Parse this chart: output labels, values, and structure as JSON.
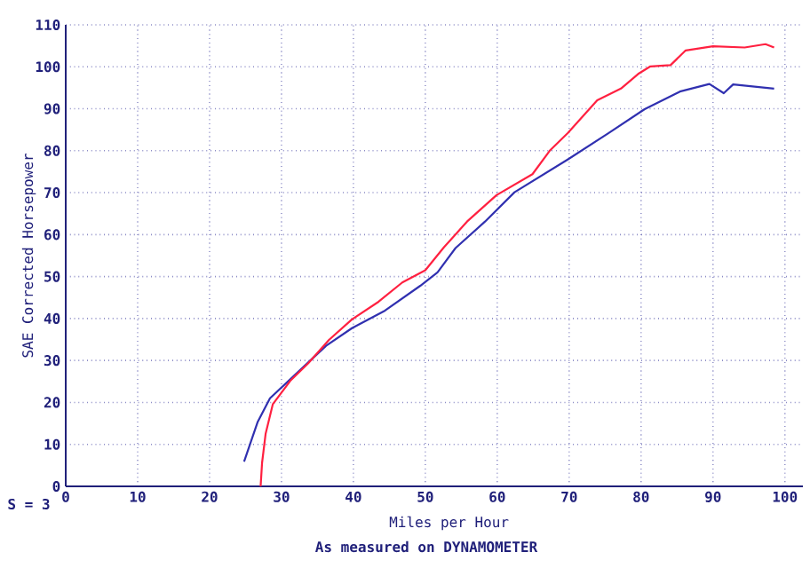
{
  "chart_data": {
    "type": "line",
    "xlabel": "Miles per Hour",
    "ylabel": "SAE Corrected Horsepower",
    "annotations": [
      "S = 3",
      "As measured on DYNAMOMETER"
    ],
    "xlim": [
      0,
      102.5
    ],
    "ylim": [
      0,
      110
    ],
    "xticks": [
      0,
      10,
      20,
      30,
      40,
      50,
      60,
      70,
      80,
      90,
      100
    ],
    "yticks": [
      0,
      10,
      20,
      30,
      40,
      50,
      60,
      70,
      80,
      90,
      100,
      110
    ],
    "grid": true,
    "marker": "none",
    "line_style": "solid",
    "series": [
      {
        "color": "#3030b0",
        "x": [
          24.8,
          26.7,
          28.4,
          32.9,
          36.2,
          39.8,
          44.4,
          49.3,
          51.7,
          54.2,
          58.3,
          62.4,
          69.8,
          75.5,
          80.5,
          85.4,
          89.5,
          91.5,
          92.8,
          98.5
        ],
        "values": [
          5.9,
          15.4,
          21,
          28.2,
          33.5,
          37.7,
          41.9,
          47.8,
          51,
          56.8,
          63.1,
          70.1,
          77.9,
          84.2,
          89.9,
          94.1,
          95.9,
          93.7,
          95.8,
          94.8
        ]
      },
      {
        "color": "#ff2040",
        "x": [
          27.1,
          27.3,
          27.8,
          28.8,
          31.2,
          33.7,
          36.6,
          39.8,
          43.5,
          46.8,
          50,
          52.6,
          55.8,
          59.9,
          64.9,
          67.3,
          69.8,
          73.9,
          77.2,
          79.6,
          81.3,
          84.1,
          86.2,
          90,
          94.4,
          97.3,
          98.5
        ],
        "values": [
          0,
          5.6,
          12.6,
          19.6,
          25.1,
          29.3,
          34.9,
          39.8,
          44,
          48.6,
          51.5,
          57,
          63.1,
          69.4,
          74.4,
          80,
          84.2,
          92,
          94.8,
          98.3,
          100.1,
          100.4,
          103.9,
          104.9,
          104.6,
          105.4,
          104.6
        ]
      }
    ]
  }
}
